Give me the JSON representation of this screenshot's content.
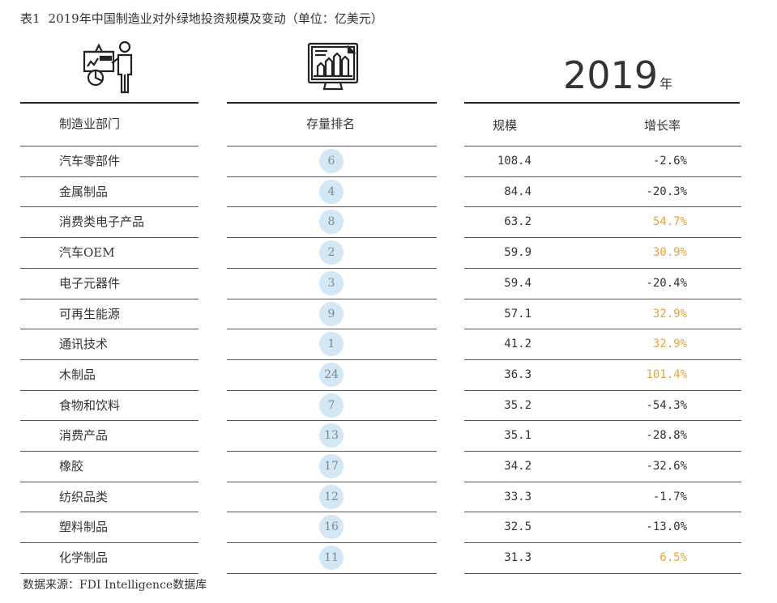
{
  "title": {
    "label": "表1",
    "text": "2019年中国制造业对外绿地投资规模及变动（单位：亿美元）"
  },
  "year": {
    "value": "2019",
    "unit": "年"
  },
  "headers": {
    "sector": "制造业部门",
    "rank": "存量排名",
    "scale": "规模",
    "growth": "增长率"
  },
  "colors": {
    "positive_growth": "#e8a33d",
    "negative_growth": "#333333",
    "rank_circle": "#d4e7f5"
  },
  "rows": [
    {
      "sector": "汽车零部件",
      "rank": "6",
      "scale": "108.4",
      "growth": "-2.6%",
      "positive": false
    },
    {
      "sector": "金属制品",
      "rank": "4",
      "scale": "84.4",
      "growth": "-20.3%",
      "positive": false
    },
    {
      "sector": "消费类电子产品",
      "rank": "8",
      "scale": "63.2",
      "growth": "54.7%",
      "positive": true
    },
    {
      "sector": "汽车OEM",
      "rank": "2",
      "scale": "59.9",
      "growth": "30.9%",
      "positive": true
    },
    {
      "sector": "电子元器件",
      "rank": "3",
      "scale": "59.4",
      "growth": "-20.4%",
      "positive": false
    },
    {
      "sector": "可再生能源",
      "rank": "9",
      "scale": "57.1",
      "growth": "32.9%",
      "positive": true
    },
    {
      "sector": "通讯技术",
      "rank": "1",
      "scale": "41.2",
      "growth": "32.9%",
      "positive": true
    },
    {
      "sector": "木制品",
      "rank": "24",
      "scale": "36.3",
      "growth": "101.4%",
      "positive": true
    },
    {
      "sector": "食物和饮料",
      "rank": "7",
      "scale": "35.2",
      "growth": "-54.3%",
      "positive": false
    },
    {
      "sector": "消费产品",
      "rank": "13",
      "scale": "35.1",
      "growth": "-28.8%",
      "positive": false
    },
    {
      "sector": "橡胶",
      "rank": "17",
      "scale": "34.2",
      "growth": "-32.6%",
      "positive": false
    },
    {
      "sector": "纺织品类",
      "rank": "12",
      "scale": "33.3",
      "growth": "-1.7%",
      "positive": false
    },
    {
      "sector": "塑料制品",
      "rank": "16",
      "scale": "32.5",
      "growth": "-13.0%",
      "positive": false
    },
    {
      "sector": "化学制品",
      "rank": "11",
      "scale": "31.3",
      "growth": "6.5%",
      "positive": true
    }
  ],
  "source": "数据来源：FDI Intelligence数据库",
  "icons": {
    "left": "presenter-chart-icon",
    "middle": "monitor-bar-chart-icon"
  }
}
